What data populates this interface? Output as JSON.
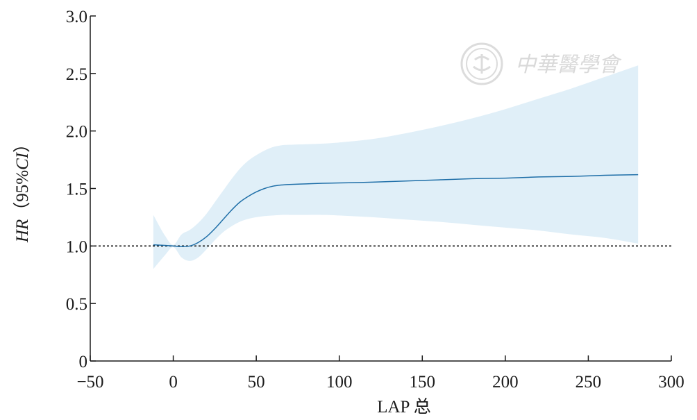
{
  "chart_data": {
    "type": "line",
    "title": "",
    "xlabel": "LAP 总",
    "ylabel_parts": [
      "HR",
      "（",
      "95%",
      "CI",
      "）"
    ],
    "xlim": [
      -50,
      300
    ],
    "ylim": [
      0,
      3.0
    ],
    "xticks": [
      -50,
      0,
      50,
      100,
      150,
      200,
      250,
      300
    ],
    "xtick_labels": [
      "−50",
      "0",
      "50",
      "100",
      "150",
      "200",
      "250",
      "300"
    ],
    "yticks": [
      0,
      0.5,
      1.0,
      1.5,
      2.0,
      2.5,
      3.0
    ],
    "ytick_labels": [
      "0",
      "0.5",
      "1.0",
      "1.5",
      "2.0",
      "2.5",
      "3.0"
    ],
    "reference_line": {
      "y": 1.0,
      "style": "dotted"
    },
    "grid": false,
    "series": [
      {
        "x": [
          -12,
          -5,
          0,
          5,
          10,
          15,
          20,
          25,
          30,
          35,
          40,
          45,
          50,
          55,
          60,
          65,
          70,
          80,
          90,
          100,
          120,
          140,
          160,
          180,
          200,
          220,
          240,
          260,
          280
        ],
        "y": [
          1.01,
          1.005,
          1.0,
          0.995,
          1.0,
          1.03,
          1.08,
          1.15,
          1.23,
          1.31,
          1.38,
          1.43,
          1.47,
          1.5,
          1.52,
          1.53,
          1.535,
          1.54,
          1.545,
          1.548,
          1.555,
          1.565,
          1.575,
          1.585,
          1.59,
          1.6,
          1.605,
          1.615,
          1.62
        ],
        "lower": [
          0.8,
          0.92,
          0.99,
          0.9,
          0.87,
          0.9,
          0.97,
          1.05,
          1.12,
          1.17,
          1.21,
          1.235,
          1.25,
          1.26,
          1.265,
          1.27,
          1.27,
          1.27,
          1.27,
          1.265,
          1.25,
          1.23,
          1.21,
          1.185,
          1.16,
          1.135,
          1.1,
          1.07,
          1.02
        ],
        "upper": [
          1.27,
          1.09,
          1.01,
          1.1,
          1.14,
          1.2,
          1.28,
          1.38,
          1.48,
          1.58,
          1.67,
          1.74,
          1.79,
          1.83,
          1.86,
          1.875,
          1.88,
          1.885,
          1.89,
          1.9,
          1.93,
          1.98,
          2.04,
          2.11,
          2.19,
          2.28,
          2.37,
          2.47,
          2.57
        ]
      }
    ],
    "colors": {
      "line": "#1f6fa8",
      "band": "#e0eff8",
      "axis": "#1a1a1a"
    }
  },
  "watermark": {
    "text": "中華醫學會",
    "seal_icon": "medical-association-seal-icon"
  }
}
